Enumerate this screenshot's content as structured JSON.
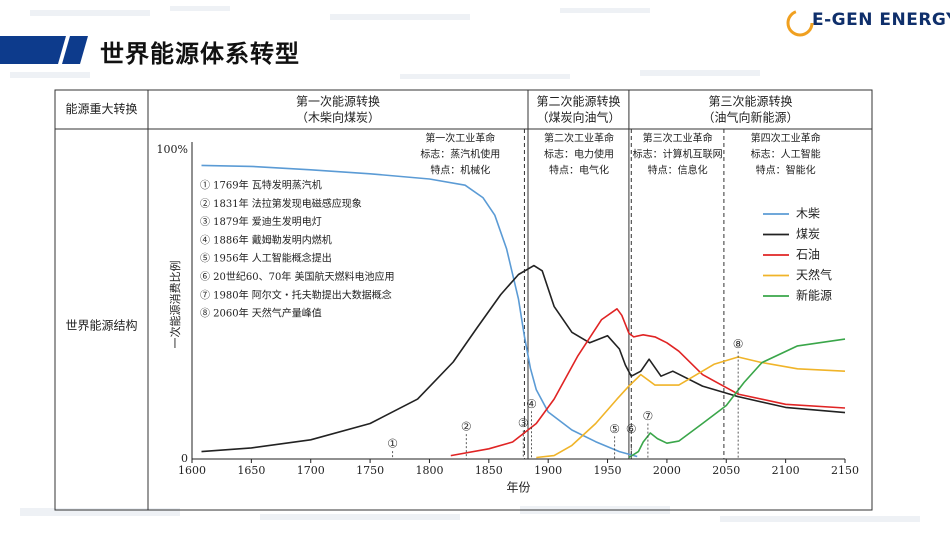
{
  "page": {
    "title": "世界能源体系转型"
  },
  "logo": {
    "text": "E-GEN ENERGY"
  },
  "header": {
    "row_label": "能源重大转换",
    "transitions": [
      {
        "line1": "第一次能源转换",
        "line2": "（木柴向煤炭）"
      },
      {
        "line1": "第二次能源转换",
        "line2": "（煤炭向油气）"
      },
      {
        "line1": "第三次能源转换",
        "line2": "（油气向新能源）"
      }
    ]
  },
  "body_label": "世界能源结构",
  "chart_data": {
    "type": "line",
    "title": "",
    "xlabel": "年份",
    "ylabel": "一次能源消费比例",
    "xlim": [
      1600,
      2150
    ],
    "ylim": [
      0,
      100
    ],
    "x_ticks": [
      1600,
      1650,
      1700,
      1750,
      1800,
      1850,
      1900,
      1950,
      2000,
      2050,
      2100,
      2150
    ],
    "y_tick_labels": {
      "top": "100%",
      "bottom": "0"
    },
    "series": [
      {
        "name": "木柴",
        "color": "#5b9bd5",
        "points": [
          [
            1608,
            95
          ],
          [
            1650,
            94.7
          ],
          [
            1700,
            93.6
          ],
          [
            1750,
            92.3
          ],
          [
            1800,
            90.6
          ],
          [
            1830,
            88.6
          ],
          [
            1845,
            84.6
          ],
          [
            1855,
            78.9
          ],
          [
            1865,
            68
          ],
          [
            1875,
            51.7
          ],
          [
            1880,
            39.7
          ],
          [
            1885,
            29.4
          ],
          [
            1890,
            22.4
          ],
          [
            1900,
            15.2
          ],
          [
            1920,
            9.4
          ],
          [
            1940,
            5.6
          ],
          [
            1960,
            2.4
          ],
          [
            1975,
            0.8
          ]
        ]
      },
      {
        "name": "煤炭",
        "color": "#222222",
        "points": [
          [
            1608,
            2.4
          ],
          [
            1650,
            3.6
          ],
          [
            1700,
            6.2
          ],
          [
            1750,
            11.5
          ],
          [
            1790,
            19.4
          ],
          [
            1820,
            31.4
          ],
          [
            1840,
            42.4
          ],
          [
            1860,
            53.2
          ],
          [
            1875,
            59.7
          ],
          [
            1888,
            62.6
          ],
          [
            1895,
            60.9
          ],
          [
            1905,
            49.4
          ],
          [
            1920,
            41
          ],
          [
            1935,
            37.6
          ],
          [
            1950,
            39.9
          ],
          [
            1960,
            35.6
          ],
          [
            1965,
            30.4
          ],
          [
            1970,
            26.8
          ],
          [
            1978,
            28.4
          ],
          [
            1985,
            32.3
          ],
          [
            1995,
            26.8
          ],
          [
            2005,
            28.4
          ],
          [
            2030,
            23.6
          ],
          [
            2060,
            20.2
          ],
          [
            2100,
            16.7
          ],
          [
            2150,
            15
          ]
        ]
      },
      {
        "name": "石油",
        "color": "#e02424",
        "points": [
          [
            1818,
            1.1
          ],
          [
            1850,
            3.3
          ],
          [
            1870,
            5.5
          ],
          [
            1890,
            11.5
          ],
          [
            1905,
            19.4
          ],
          [
            1925,
            33.4
          ],
          [
            1945,
            45.1
          ],
          [
            1958,
            48.6
          ],
          [
            1962,
            46.5
          ],
          [
            1968,
            40.7
          ],
          [
            1972,
            39.5
          ],
          [
            1980,
            40.2
          ],
          [
            1990,
            39.5
          ],
          [
            2000,
            37.6
          ],
          [
            2010,
            34.9
          ],
          [
            2030,
            27.3
          ],
          [
            2060,
            21
          ],
          [
            2100,
            17.7
          ],
          [
            2150,
            16.5
          ]
        ]
      },
      {
        "name": "天然气",
        "color": "#f0b429",
        "points": [
          [
            1890,
            0.5
          ],
          [
            1905,
            1.1
          ],
          [
            1920,
            4.4
          ],
          [
            1940,
            11.5
          ],
          [
            1958,
            19.4
          ],
          [
            1968,
            23.6
          ],
          [
            1978,
            27.3
          ],
          [
            1990,
            23.9
          ],
          [
            2010,
            23.9
          ],
          [
            2040,
            30.7
          ],
          [
            2060,
            33
          ],
          [
            2080,
            31.2
          ],
          [
            2110,
            29.2
          ],
          [
            2150,
            28.4
          ]
        ]
      },
      {
        "name": "新能源",
        "color": "#3aa64a",
        "points": [
          [
            1968,
            0.5
          ],
          [
            1976,
            2.4
          ],
          [
            1980,
            5.5
          ],
          [
            1986,
            8.4
          ],
          [
            1992,
            6.6
          ],
          [
            2000,
            5.1
          ],
          [
            2010,
            5.8
          ],
          [
            2030,
            11.5
          ],
          [
            2050,
            17.3
          ],
          [
            2065,
            24.8
          ],
          [
            2080,
            31.2
          ],
          [
            2110,
            36.6
          ],
          [
            2150,
            38.8
          ]
        ]
      }
    ],
    "era_boundaries": [
      1880,
      1883,
      1968,
      1970,
      2048
    ],
    "era_notes": [
      {
        "l1": "第一次工业革命",
        "l2": "标志：蒸汽机使用",
        "l3": "特点：机械化"
      },
      {
        "l1": "第二次工业革命",
        "l2": "标志：电力使用",
        "l3": "特点：电气化"
      },
      {
        "l1": "第三次工业革命",
        "l2": "标志：计算机互联网",
        "l3": "特点：信息化"
      },
      {
        "l1": "第四次工业革命",
        "l2": "标志：人工智能",
        "l3": "特点：智能化"
      }
    ],
    "events": [
      {
        "id": "①",
        "text": "1769年 瓦特发明蒸汽机",
        "year": 1769,
        "value": 4.8
      },
      {
        "id": "②",
        "text": "1831年 法拉第发现电磁感应现象",
        "year": 1831,
        "value": 10.3
      },
      {
        "id": "③",
        "text": "1879年 爱迪生发明电灯",
        "year": 1879,
        "value": 11.5
      },
      {
        "id": "④",
        "text": "1886年 戴姆勒发明内燃机",
        "year": 1886,
        "value": 17.7
      },
      {
        "id": "⑤",
        "text": "1956年 人工智能概念提出",
        "year": 1956,
        "value": 9.6
      },
      {
        "id": "⑥",
        "text": "20世纪60、70年 美国航天燃料电池应用",
        "year": 1970,
        "value": 9.6
      },
      {
        "id": "⑦",
        "text": "1980年 阿尔文・托夫勒提出大数据概念",
        "year": 1984,
        "value": 13.7
      },
      {
        "id": "⑧",
        "text": "2060年 天然气产量峰值",
        "year": 2060,
        "value": 37
      }
    ]
  }
}
